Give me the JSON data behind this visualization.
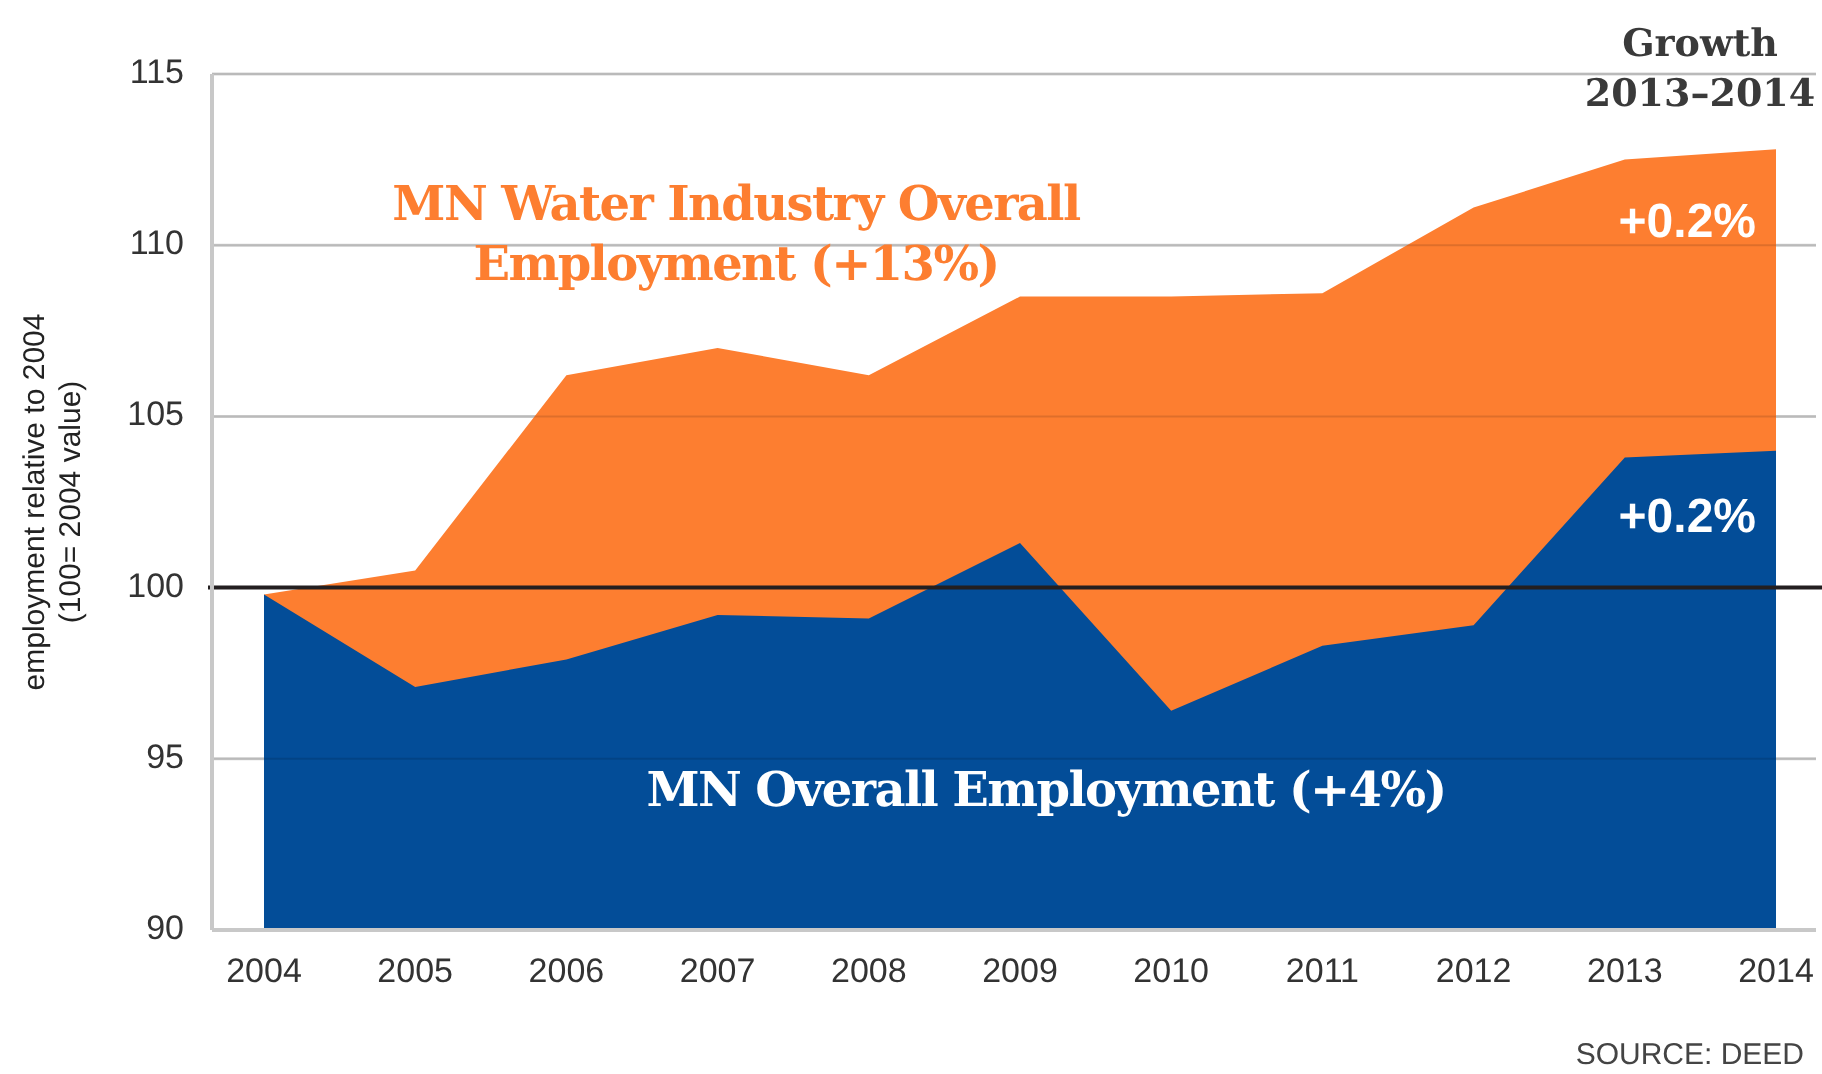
{
  "chart_data": {
    "type": "area",
    "ylabel": "employment relative to 2004\n(100= 2004 value)",
    "categories": [
      "2004",
      "2005",
      "2006",
      "2007",
      "2008",
      "2009",
      "2010",
      "2011",
      "2012",
      "2013",
      "2014"
    ],
    "series": [
      {
        "name": "MN Water Industry Overall Employment (+13%)",
        "color": "#fd7e30",
        "values": [
          99.8,
          100.5,
          106.2,
          107.0,
          106.2,
          108.5,
          108.5,
          108.6,
          111.1,
          112.5,
          112.8
        ]
      },
      {
        "name": "MN Overall Employment (+4%)",
        "color": "#034d98",
        "values": [
          99.8,
          97.1,
          97.9,
          99.2,
          99.1,
          101.3,
          96.4,
          98.3,
          98.9,
          103.8,
          104.0
        ]
      }
    ],
    "ylim": [
      90,
      115
    ],
    "yticks": [
      90,
      95,
      100,
      105,
      110,
      115
    ],
    "grid": "y",
    "ref_lines": [
      {
        "axis": "y",
        "value": 100,
        "color": "#231f20"
      }
    ],
    "annotations": [
      "Growth\n2013–2014",
      {
        "text": "+0.2%",
        "x": "2014",
        "y": 110.6
      },
      {
        "text": "+0.2%",
        "x": "2014",
        "y": 102
      },
      "SOURCE: DEED"
    ]
  }
}
